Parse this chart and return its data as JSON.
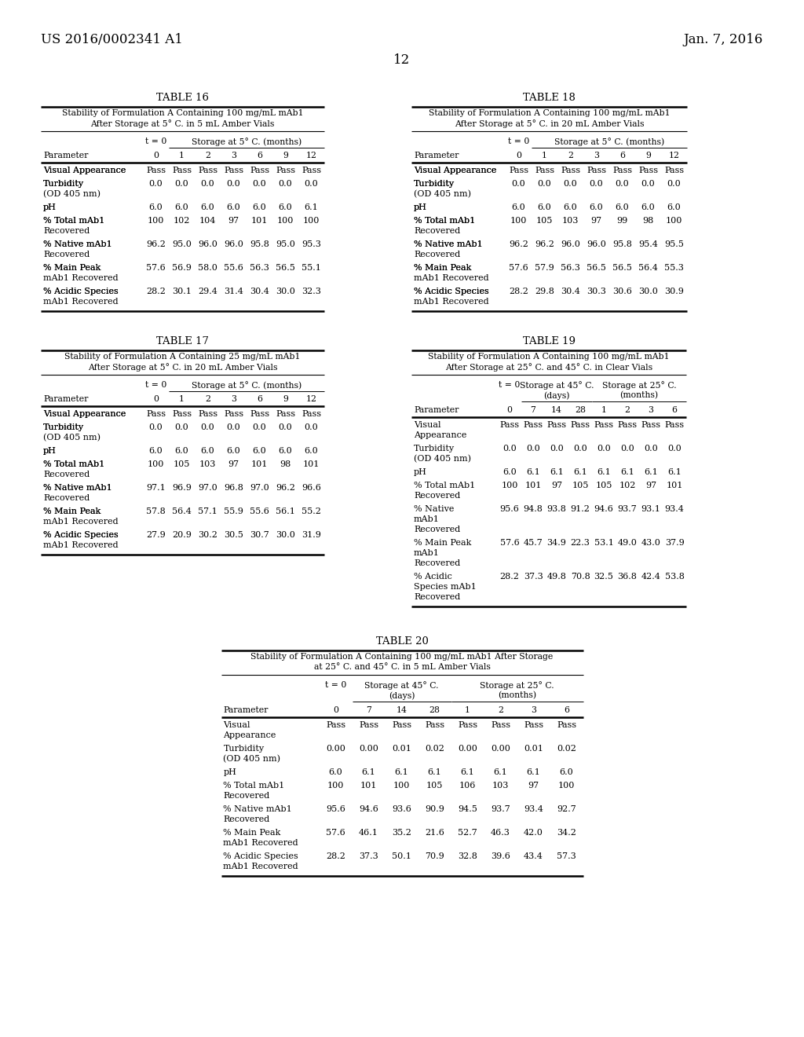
{
  "header_left": "US 2016/0002341 A1",
  "header_right": "Jan. 7, 2016",
  "page_number": "12",
  "table16": {
    "title": "TABLE 16",
    "subtitle1": "Stability of Formulation A Containing 100 mg/mL mAb1",
    "subtitle2": "After Storage at 5° C. in 5 mL Amber Vials",
    "col_header_storage": "Storage at 5° C. (months)",
    "col_labels": [
      "0",
      "1",
      "2",
      "3",
      "6",
      "9",
      "12"
    ],
    "rows": [
      {
        "param": [
          "Visual Appearance"
        ],
        "values": [
          "Pass",
          "Pass",
          "Pass",
          "Pass",
          "Pass",
          "Pass",
          "Pass"
        ]
      },
      {
        "param": [
          "Turbidity",
          "(OD 405 nm)"
        ],
        "values": [
          "0.0",
          "0.0",
          "0.0",
          "0.0",
          "0.0",
          "0.0",
          "0.0"
        ]
      },
      {
        "param": [
          "pH"
        ],
        "values": [
          "6.0",
          "6.0",
          "6.0",
          "6.0",
          "6.0",
          "6.0",
          "6.1"
        ]
      },
      {
        "param": [
          "% Total mAb1",
          "Recovered"
        ],
        "values": [
          "100",
          "102",
          "104",
          "97",
          "101",
          "100",
          "100"
        ]
      },
      {
        "param": [
          "% Native mAb1",
          "Recovered"
        ],
        "values": [
          "96.2",
          "95.0",
          "96.0",
          "96.0",
          "95.8",
          "95.0",
          "95.3"
        ]
      },
      {
        "param": [
          "% Main Peak",
          "mAb1 Recovered"
        ],
        "values": [
          "57.6",
          "56.9",
          "58.0",
          "55.6",
          "56.3",
          "56.5",
          "55.1"
        ]
      },
      {
        "param": [
          "% Acidic Species",
          "mAb1 Recovered"
        ],
        "values": [
          "28.2",
          "30.1",
          "29.4",
          "31.4",
          "30.4",
          "30.0",
          "32.3"
        ]
      }
    ]
  },
  "table17": {
    "title": "TABLE 17",
    "subtitle1": "Stability of Formulation A Containing 25 mg/mL mAb1",
    "subtitle2": "After Storage at 5° C. in 20 mL Amber Vials",
    "col_header_storage": "Storage at 5° C. (months)",
    "col_labels": [
      "0",
      "1",
      "2",
      "3",
      "6",
      "9",
      "12"
    ],
    "rows": [
      {
        "param": [
          "Visual Appearance"
        ],
        "values": [
          "Pass",
          "Pass",
          "Pass",
          "Pass",
          "Pass",
          "Pass",
          "Pass"
        ]
      },
      {
        "param": [
          "Turbidity",
          "(OD 405 nm)"
        ],
        "values": [
          "0.0",
          "0.0",
          "0.0",
          "0.0",
          "0.0",
          "0.0",
          "0.0"
        ]
      },
      {
        "param": [
          "pH"
        ],
        "values": [
          "6.0",
          "6.0",
          "6.0",
          "6.0",
          "6.0",
          "6.0",
          "6.0"
        ]
      },
      {
        "param": [
          "% Total mAb1",
          "Recovered"
        ],
        "values": [
          "100",
          "105",
          "103",
          "97",
          "101",
          "98",
          "101"
        ]
      },
      {
        "param": [
          "% Native mAb1",
          "Recovered"
        ],
        "values": [
          "97.1",
          "96.9",
          "97.0",
          "96.8",
          "97.0",
          "96.2",
          "96.6"
        ]
      },
      {
        "param": [
          "% Main Peak",
          "mAb1 Recovered"
        ],
        "values": [
          "57.8",
          "56.4",
          "57.1",
          "55.9",
          "55.6",
          "56.1",
          "55.2"
        ]
      },
      {
        "param": [
          "% Acidic Species",
          "mAb1 Recovered"
        ],
        "values": [
          "27.9",
          "20.9",
          "30.2",
          "30.5",
          "30.7",
          "30.0",
          "31.9"
        ]
      }
    ]
  },
  "table18": {
    "title": "TABLE 18",
    "subtitle1": "Stability of Formulation A Containing 100 mg/mL mAb1",
    "subtitle2": "After Storage at 5° C. in 20 mL Amber Vials",
    "col_header_storage": "Storage at 5° C. (months)",
    "col_labels": [
      "0",
      "1",
      "2",
      "3",
      "6",
      "9",
      "12"
    ],
    "rows": [
      {
        "param": [
          "Visual Appearance"
        ],
        "values": [
          "Pass",
          "Pass",
          "Pass",
          "Pass",
          "Pass",
          "Pass",
          "Pass"
        ]
      },
      {
        "param": [
          "Turbidity",
          "(OD 405 nm)"
        ],
        "values": [
          "0.0",
          "0.0",
          "0.0",
          "0.0",
          "0.0",
          "0.0",
          "0.0"
        ]
      },
      {
        "param": [
          "pH"
        ],
        "values": [
          "6.0",
          "6.0",
          "6.0",
          "6.0",
          "6.0",
          "6.0",
          "6.0"
        ]
      },
      {
        "param": [
          "% Total mAb1",
          "Recovered"
        ],
        "values": [
          "100",
          "105",
          "103",
          "97",
          "99",
          "98",
          "100"
        ]
      },
      {
        "param": [
          "% Native mAb1",
          "Recovered"
        ],
        "values": [
          "96.2",
          "96.2",
          "96.0",
          "96.0",
          "95.8",
          "95.4",
          "95.5"
        ]
      },
      {
        "param": [
          "% Main Peak",
          "mAb1 Recovered"
        ],
        "values": [
          "57.6",
          "57.9",
          "56.3",
          "56.5",
          "56.5",
          "56.4",
          "55.3"
        ]
      },
      {
        "param": [
          "% Acidic Species",
          "mAb1 Recovered"
        ],
        "values": [
          "28.2",
          "29.8",
          "30.4",
          "30.3",
          "30.6",
          "30.0",
          "30.9"
        ]
      }
    ]
  },
  "table19": {
    "title": "TABLE 19",
    "subtitle1": "Stability of Formulation A Containing 100 mg/mL mAb1",
    "subtitle2": "After Storage at 25° C. and 45° C. in Clear Vials",
    "col_labels": [
      "0",
      "7",
      "14",
      "28",
      "1",
      "2",
      "3",
      "6"
    ],
    "rows": [
      {
        "param": [
          "Visual",
          "Appearance"
        ],
        "values": [
          "Pass",
          "Pass",
          "Pass",
          "Pass",
          "Pass",
          "Pass",
          "Pass",
          "Pass"
        ]
      },
      {
        "param": [
          "Turbidity",
          "(OD 405 nm)"
        ],
        "values": [
          "0.0",
          "0.0",
          "0.0",
          "0.0",
          "0.0",
          "0.0",
          "0.0",
          "0.0"
        ]
      },
      {
        "param": [
          "pH"
        ],
        "values": [
          "6.0",
          "6.1",
          "6.1",
          "6.1",
          "6.1",
          "6.1",
          "6.1",
          "6.1"
        ]
      },
      {
        "param": [
          "% Total mAb1",
          "Recovered"
        ],
        "values": [
          "100",
          "101",
          "97",
          "105",
          "105",
          "102",
          "97",
          "101"
        ]
      },
      {
        "param": [
          "% Native",
          "mAb1",
          "Recovered"
        ],
        "values": [
          "95.6",
          "94.8",
          "93.8",
          "91.2",
          "94.6",
          "93.7",
          "93.1",
          "93.4"
        ]
      },
      {
        "param": [
          "% Main Peak",
          "mAb1",
          "Recovered"
        ],
        "values": [
          "57.6",
          "45.7",
          "34.9",
          "22.3",
          "53.1",
          "49.0",
          "43.0",
          "37.9"
        ]
      },
      {
        "param": [
          "% Acidic",
          "Species mAb1",
          "Recovered"
        ],
        "values": [
          "28.2",
          "37.3",
          "49.8",
          "70.8",
          "32.5",
          "36.8",
          "42.4",
          "53.8"
        ]
      }
    ]
  },
  "table20": {
    "title": "TABLE 20",
    "subtitle1": "Stability of Formulation A Containing 100 mg/mL mAb1 After Storage",
    "subtitle2": "at 25° C. and 45° C. in 5 mL Amber Vials",
    "col_labels": [
      "0",
      "7",
      "14",
      "28",
      "1",
      "2",
      "3",
      "6"
    ],
    "rows": [
      {
        "param": [
          "Visual",
          "Appearance"
        ],
        "values": [
          "Pass",
          "Pass",
          "Pass",
          "Pass",
          "Pass",
          "Pass",
          "Pass",
          "Pass"
        ]
      },
      {
        "param": [
          "Turbidity",
          "(OD 405 nm)"
        ],
        "values": [
          "0.00",
          "0.00",
          "0.01",
          "0.02",
          "0.00",
          "0.00",
          "0.01",
          "0.02"
        ]
      },
      {
        "param": [
          "pH"
        ],
        "values": [
          "6.0",
          "6.1",
          "6.1",
          "6.1",
          "6.1",
          "6.1",
          "6.1",
          "6.0"
        ]
      },
      {
        "param": [
          "% Total mAb1",
          "Recovered"
        ],
        "values": [
          "100",
          "101",
          "100",
          "105",
          "106",
          "103",
          "97",
          "100"
        ]
      },
      {
        "param": [
          "% Native mAb1",
          "Recovered"
        ],
        "values": [
          "95.6",
          "94.6",
          "93.6",
          "90.9",
          "94.5",
          "93.7",
          "93.4",
          "92.7"
        ]
      },
      {
        "param": [
          "% Main Peak",
          "mAb1 Recovered"
        ],
        "values": [
          "57.6",
          "46.1",
          "35.2",
          "21.6",
          "52.7",
          "46.3",
          "42.0",
          "34.2"
        ]
      },
      {
        "param": [
          "% Acidic Species",
          "mAb1 Recovered"
        ],
        "values": [
          "28.2",
          "37.3",
          "50.1",
          "70.9",
          "32.8",
          "39.6",
          "43.4",
          "57.3"
        ]
      }
    ]
  }
}
